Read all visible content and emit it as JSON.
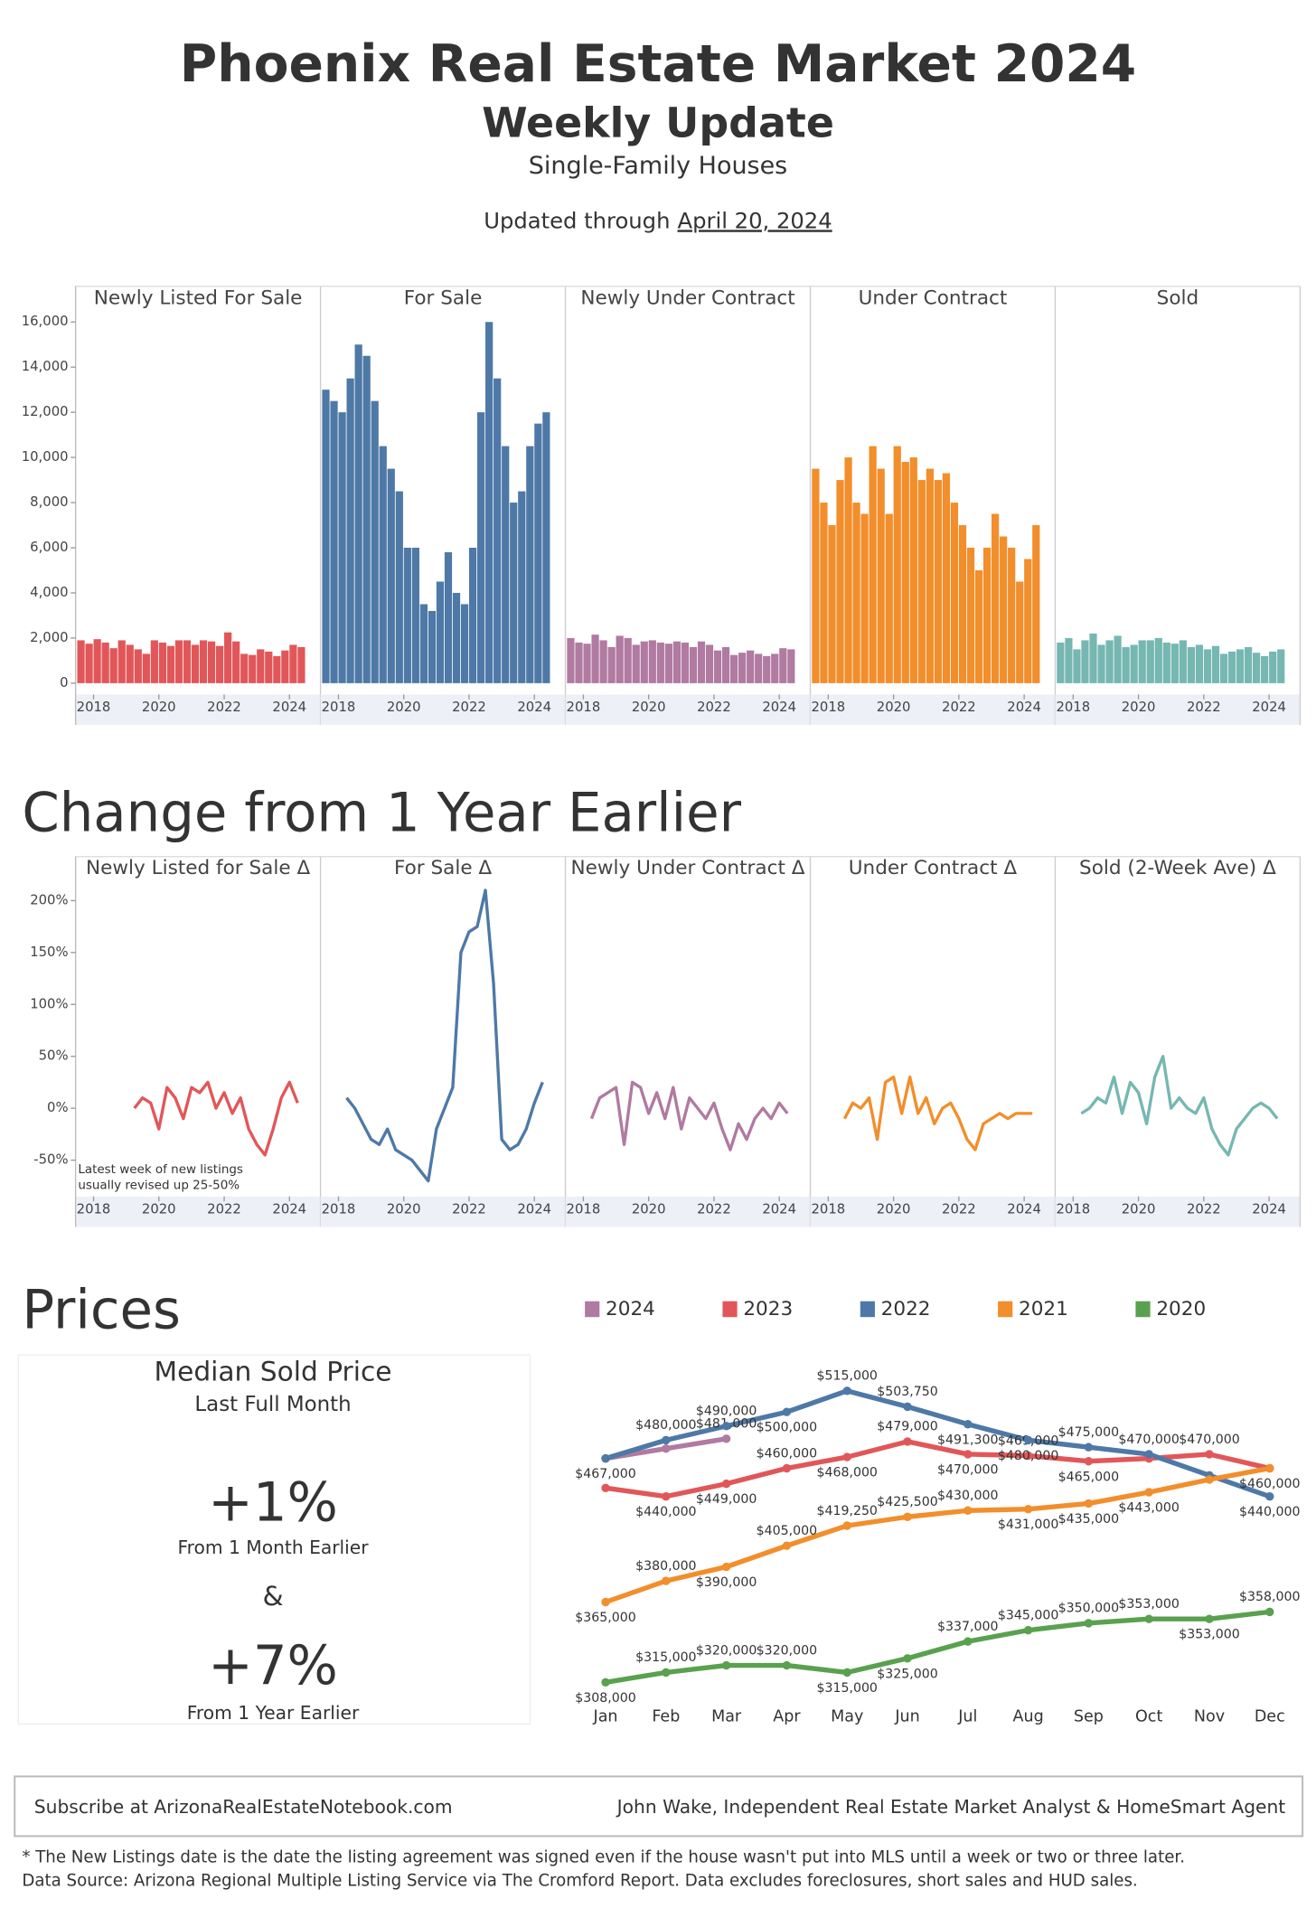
{
  "header": {
    "title": "Phoenix Real Estate Market 2024",
    "subtitle": "Weekly Update",
    "segment": "Single-Family Houses",
    "updated_label": "Updated through",
    "updated_date": "April 20, 2024"
  },
  "sections": {
    "change": "Change from 1 Year Earlier",
    "prices": "Prices"
  },
  "kpi": {
    "title": "Median Sold Price",
    "subtitle": "Last Full Month",
    "month_change": "+1%",
    "month_label": "From 1 Month Earlier",
    "joiner": "&",
    "year_change": "+7%",
    "year_label": "From 1 Year Earlier"
  },
  "footer": {
    "subscribe": "Subscribe at ArizonaRealEstateNotebook.com",
    "author": "John Wake, Independent Real Estate Market Analyst & HomeSmart Agent",
    "notes": [
      "* The New Listings date is the date the listing agreement was signed even if the house wasn't put into MLS until a week or two or three later.",
      "Data Source: Arizona Regional Multiple Listing Service via The Cromford Report. Data excludes foreclosures, short sales and HUD sales."
    ]
  },
  "chart_data": [
    {
      "type": "bar",
      "title": "Newly Listed For Sale",
      "color": "#e15759",
      "x": [
        2017.5,
        2017.75,
        2018,
        2018.25,
        2018.5,
        2018.75,
        2019,
        2019.25,
        2019.5,
        2019.75,
        2020,
        2020.25,
        2020.5,
        2020.75,
        2021,
        2021.25,
        2021.5,
        2021.75,
        2022,
        2022.25,
        2022.5,
        2022.75,
        2023,
        2023.25,
        2023.5,
        2023.75,
        2024,
        2024.25
      ],
      "values": [
        1900,
        1750,
        1950,
        1800,
        1550,
        1900,
        1700,
        1500,
        1300,
        1900,
        1800,
        1650,
        1900,
        1900,
        1700,
        1900,
        1850,
        1650,
        2250,
        1850,
        1300,
        1250,
        1500,
        1400,
        1200,
        1450,
        1700,
        1600
      ],
      "xlim": [
        2017.45,
        2024.95
      ],
      "xticks": [
        2018,
        2020,
        2022,
        2024
      ],
      "ylim": [
        -500,
        16500
      ],
      "yticks": [
        0,
        {
          "value": 2000,
          "label": "2,000"
        },
        {
          "value": 4000,
          "label": "4,000"
        },
        {
          "value": 6000,
          "label": "6,000"
        },
        {
          "value": 8000,
          "label": "8,000"
        },
        {
          "value": 10000,
          "label": "10,000"
        },
        {
          "value": 12000,
          "label": "12,000"
        },
        {
          "value": 14000,
          "label": "14,000"
        },
        {
          "value": 16000,
          "label": "16,000"
        }
      ]
    },
    {
      "type": "bar",
      "title": "For Sale",
      "color": "#4e79a7",
      "x": [
        2017.5,
        2017.75,
        2018,
        2018.25,
        2018.5,
        2018.75,
        2019,
        2019.25,
        2019.5,
        2019.75,
        2020,
        2020.25,
        2020.5,
        2020.75,
        2021,
        2021.25,
        2021.5,
        2021.75,
        2022,
        2022.25,
        2022.5,
        2022.75,
        2023,
        2023.25,
        2023.5,
        2023.75,
        2024,
        2024.25
      ],
      "values": [
        13000,
        12500,
        12000,
        13500,
        15000,
        14500,
        12500,
        10500,
        9500,
        8500,
        6000,
        6000,
        3500,
        3200,
        4500,
        5800,
        4000,
        3500,
        6000,
        12000,
        16000,
        13500,
        10500,
        8000,
        8500,
        10500,
        11500,
        12000
      ],
      "xlim": [
        2017.45,
        2024.95
      ],
      "xticks": [
        2018,
        2020,
        2022,
        2024
      ],
      "ylim": [
        -500,
        16500
      ]
    },
    {
      "type": "bar",
      "title": "Newly Under Contract",
      "color": "#b07aa1",
      "x": [
        2017.5,
        2017.75,
        2018,
        2018.25,
        2018.5,
        2018.75,
        2019,
        2019.25,
        2019.5,
        2019.75,
        2020,
        2020.25,
        2020.5,
        2020.75,
        2021,
        2021.25,
        2021.5,
        2021.75,
        2022,
        2022.25,
        2022.5,
        2022.75,
        2023,
        2023.25,
        2023.5,
        2023.75,
        2024,
        2024.25
      ],
      "values": [
        2000,
        1800,
        1750,
        2150,
        1900,
        1600,
        2100,
        2000,
        1700,
        1850,
        1900,
        1800,
        1750,
        1850,
        1800,
        1600,
        1850,
        1700,
        1450,
        1600,
        1250,
        1350,
        1450,
        1300,
        1200,
        1300,
        1550,
        1500
      ],
      "xlim": [
        2017.45,
        2024.95
      ],
      "xticks": [
        2018,
        2020,
        2022,
        2024
      ],
      "ylim": [
        -500,
        16500
      ]
    },
    {
      "type": "bar",
      "title": "Under Contract",
      "color": "#f28e2b",
      "x": [
        2017.5,
        2017.75,
        2018,
        2018.25,
        2018.5,
        2018.75,
        2019,
        2019.25,
        2019.5,
        2019.75,
        2020,
        2020.25,
        2020.5,
        2020.75,
        2021,
        2021.25,
        2021.5,
        2021.75,
        2022,
        2022.25,
        2022.5,
        2022.75,
        2023,
        2023.25,
        2023.5,
        2023.75,
        2024,
        2024.25
      ],
      "values": [
        9500,
        8000,
        7000,
        9000,
        10000,
        8000,
        7500,
        10500,
        9500,
        7500,
        10500,
        9800,
        10000,
        9000,
        9500,
        9000,
        9300,
        8000,
        7000,
        6000,
        5000,
        6000,
        7500,
        6500,
        6000,
        4500,
        5500,
        7000
      ],
      "xlim": [
        2017.45,
        2024.95
      ],
      "xticks": [
        2018,
        2020,
        2022,
        2024
      ],
      "ylim": [
        -500,
        16500
      ]
    },
    {
      "type": "bar",
      "title": "Sold",
      "color": "#76b7b2",
      "x": [
        2017.5,
        2017.75,
        2018,
        2018.25,
        2018.5,
        2018.75,
        2019,
        2019.25,
        2019.5,
        2019.75,
        2020,
        2020.25,
        2020.5,
        2020.75,
        2021,
        2021.25,
        2021.5,
        2021.75,
        2022,
        2022.25,
        2022.5,
        2022.75,
        2023,
        2023.25,
        2023.5,
        2023.75,
        2024,
        2024.25
      ],
      "values": [
        1800,
        2000,
        1500,
        1900,
        2200,
        1700,
        1900,
        2100,
        1600,
        1700,
        1900,
        1900,
        2000,
        1800,
        1750,
        1900,
        1600,
        1700,
        1500,
        1650,
        1300,
        1400,
        1500,
        1600,
        1350,
        1200,
        1400,
        1500
      ],
      "xlim": [
        2017.45,
        2024.95
      ],
      "xticks": [
        2018,
        2020,
        2022,
        2024
      ],
      "ylim": [
        -500,
        16500
      ]
    },
    {
      "type": "line",
      "title": "Newly Listed for Sale Δ",
      "color": "#e15759",
      "annotation": [
        "Latest week of new listings",
        "usually revised up 25-50%"
      ],
      "x": [
        2018.25,
        2018.5,
        2018.75,
        2019,
        2019.25,
        2019.5,
        2019.75,
        2020,
        2020.25,
        2020.5,
        2020.75,
        2021,
        2021.25,
        2021.5,
        2021.75,
        2022,
        2022.25,
        2022.5,
        2022.75,
        2023,
        2023.25,
        2023.5,
        2023.75,
        2024,
        2024.25
      ],
      "values": [
        null,
        null,
        null,
        null,
        0,
        10,
        5,
        -20,
        20,
        10,
        -10,
        20,
        15,
        25,
        0,
        15,
        -5,
        10,
        -20,
        -35,
        -45,
        -20,
        10,
        25,
        5
      ],
      "xlim": [
        2017.45,
        2024.95
      ],
      "xticks": [
        2018,
        2020,
        2022,
        2024
      ],
      "ylim": [
        -85,
        219
      ],
      "yticks": [
        {
          "value": -50,
          "label": "-50%"
        },
        {
          "value": 0,
          "label": "0%"
        },
        {
          "value": 50,
          "label": "50%"
        },
        {
          "value": 100,
          "label": "100%"
        },
        {
          "value": 150,
          "label": "150%"
        },
        {
          "value": 200,
          "label": "200%"
        }
      ]
    },
    {
      "type": "line",
      "title": "For Sale Δ",
      "color": "#4e79a7",
      "x": [
        2018.25,
        2018.5,
        2018.75,
        2019,
        2019.25,
        2019.5,
        2019.75,
        2020,
        2020.25,
        2020.5,
        2020.75,
        2021,
        2021.25,
        2021.5,
        2021.75,
        2022,
        2022.25,
        2022.5,
        2022.75,
        2023,
        2023.25,
        2023.5,
        2023.75,
        2024,
        2024.25
      ],
      "values": [
        10,
        0,
        -15,
        -30,
        -35,
        -20,
        -40,
        -45,
        -50,
        -60,
        -70,
        -20,
        0,
        20,
        150,
        170,
        175,
        210,
        120,
        -30,
        -40,
        -35,
        -20,
        5,
        25
      ],
      "xlim": [
        2017.45,
        2024.95
      ],
      "xticks": [
        2018,
        2020,
        2022,
        2024
      ],
      "ylim": [
        -85,
        219
      ]
    },
    {
      "type": "line",
      "title": "Newly Under Contract Δ",
      "color": "#b07aa1",
      "x": [
        2018.25,
        2018.5,
        2018.75,
        2019,
        2019.25,
        2019.5,
        2019.75,
        2020,
        2020.25,
        2020.5,
        2020.75,
        2021,
        2021.25,
        2021.5,
        2021.75,
        2022,
        2022.25,
        2022.5,
        2022.75,
        2023,
        2023.25,
        2023.5,
        2023.75,
        2024,
        2024.25
      ],
      "values": [
        -10,
        10,
        15,
        20,
        -35,
        25,
        20,
        -5,
        15,
        -10,
        20,
        -20,
        10,
        0,
        -10,
        5,
        -20,
        -40,
        -15,
        -30,
        -10,
        0,
        -10,
        5,
        -5
      ],
      "xlim": [
        2017.45,
        2024.95
      ],
      "xticks": [
        2018,
        2020,
        2022,
        2024
      ],
      "ylim": [
        -85,
        219
      ]
    },
    {
      "type": "line",
      "title": "Under Contract Δ",
      "color": "#f28e2b",
      "x": [
        2018.25,
        2018.5,
        2018.75,
        2019,
        2019.25,
        2019.5,
        2019.75,
        2020,
        2020.25,
        2020.5,
        2020.75,
        2021,
        2021.25,
        2021.5,
        2021.75,
        2022,
        2022.25,
        2022.5,
        2022.75,
        2023,
        2023.25,
        2023.5,
        2023.75,
        2024,
        2024.25
      ],
      "values": [
        null,
        -10,
        5,
        0,
        10,
        -30,
        25,
        30,
        -5,
        30,
        -5,
        10,
        -15,
        0,
        5,
        -10,
        -30,
        -40,
        -15,
        -10,
        -5,
        -10,
        -5,
        -5,
        -5
      ],
      "xlim": [
        2017.45,
        2024.95
      ],
      "xticks": [
        2018,
        2020,
        2022,
        2024
      ],
      "ylim": [
        -85,
        219
      ]
    },
    {
      "type": "line",
      "title": "Sold (2-Week Ave) Δ",
      "color": "#76b7b2",
      "x": [
        2018.25,
        2018.5,
        2018.75,
        2019,
        2019.25,
        2019.5,
        2019.75,
        2020,
        2020.25,
        2020.5,
        2020.75,
        2021,
        2021.25,
        2021.5,
        2021.75,
        2022,
        2022.25,
        2022.5,
        2022.75,
        2023,
        2023.25,
        2023.5,
        2023.75,
        2024,
        2024.25
      ],
      "values": [
        -5,
        0,
        10,
        5,
        30,
        -5,
        25,
        15,
        -15,
        30,
        50,
        0,
        10,
        0,
        -5,
        10,
        -20,
        -35,
        -45,
        -20,
        -10,
        0,
        5,
        0,
        -10
      ],
      "xlim": [
        2017.45,
        2024.95
      ],
      "xticks": [
        2018,
        2020,
        2022,
        2024
      ],
      "ylim": [
        -85,
        219
      ]
    },
    {
      "type": "line",
      "categories": [
        "Jan",
        "Feb",
        "Mar",
        "Apr",
        "May",
        "Jun",
        "Jul",
        "Aug",
        "Sep",
        "Oct",
        "Nov",
        "Dec"
      ],
      "ylim": [
        300000,
        525000
      ],
      "series": [
        {
          "name": "2024",
          "color": "#b07aa1",
          "values": [
            467000,
            474000,
            481000,
            null,
            null,
            null,
            null,
            null,
            null,
            null,
            null,
            null
          ],
          "value_labels": [
            null,
            null,
            "$481,000",
            null,
            null,
            null,
            null,
            null,
            null,
            null,
            null,
            null
          ]
        },
        {
          "name": "2023",
          "color": "#e15759",
          "values": [
            446000,
            440000,
            449000,
            460000,
            468000,
            479000,
            470000,
            469000,
            465000,
            467000,
            470000,
            460000
          ],
          "value_labels": [
            null,
            "$440,000",
            "$449,000",
            "$460,000",
            "$468,000",
            "$479,000",
            "$470,000",
            "$469,000",
            "$465,000",
            null,
            "$470,000",
            "$460,000"
          ]
        },
        {
          "name": "2022",
          "color": "#4e79a7",
          "values": [
            467000,
            480000,
            490000,
            500000,
            515000,
            503750,
            491300,
            480000,
            475000,
            470000,
            455000,
            440000
          ],
          "value_labels": [
            "$467,000",
            "$480,000",
            "$490,000",
            "$500,000",
            "$515,000",
            "$503,750",
            "$491,300",
            "$480,000",
            "$475,000",
            "$470,000",
            null,
            "$440,000"
          ]
        },
        {
          "name": "2021",
          "color": "#f28e2b",
          "values": [
            365000,
            380000,
            390000,
            405000,
            419250,
            425500,
            430000,
            431000,
            435000,
            443000,
            452000,
            460000
          ],
          "value_labels": [
            "$365,000",
            "$380,000",
            "$390,000",
            "$405,000",
            "$419,250",
            "$425,500",
            "$430,000",
            "$431,000",
            "$435,000",
            "$443,000",
            null,
            null
          ]
        },
        {
          "name": "2020",
          "color": "#59a14f",
          "values": [
            308000,
            315000,
            320000,
            320000,
            315000,
            325000,
            337000,
            345000,
            350000,
            353000,
            353000,
            358000
          ],
          "value_labels": [
            "$308,000",
            "$315,000",
            "$320,000",
            "$320,000",
            "$315,000",
            "$325,000",
            "$337,000",
            "$345,000",
            "$350,000",
            "$353,000",
            "$353,000",
            "$358,000"
          ]
        }
      ]
    }
  ]
}
